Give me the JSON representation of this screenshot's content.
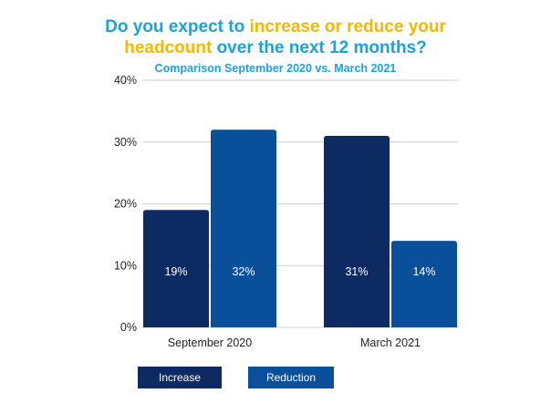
{
  "colors": {
    "title_blue": "#1aa3db",
    "title_yellow": "#f5b800",
    "increase": "#0e2a63",
    "reduction": "#0a4f9a",
    "grid": "#cfcfcf"
  },
  "title": {
    "p1": "Do you expect to ",
    "p2": "increase or reduce your",
    "p3": "headcount",
    "p4": " over the next 12 months?"
  },
  "subtitle": "Comparison September 2020 vs. March 2021",
  "chart_data": {
    "type": "bar",
    "title": "Do you expect to increase or reduce your headcount over the next 12 months?",
    "subtitle": "Comparison September 2020 vs. March 2021",
    "categories": [
      "September 2020",
      "March 2021"
    ],
    "series": [
      {
        "name": "Increase",
        "values": [
          19,
          31
        ],
        "labels": [
          "19%",
          "31%"
        ]
      },
      {
        "name": "Reduction",
        "values": [
          32,
          14
        ],
        "labels": [
          "32%",
          "14%"
        ]
      }
    ],
    "ylim": [
      0,
      40
    ],
    "yticks": [
      0,
      10,
      20,
      30,
      40
    ],
    "ytick_labels": [
      "0%",
      "10%",
      "20%",
      "30%",
      "40%"
    ],
    "grid": true,
    "legend_position": "bottom-left"
  },
  "legend": {
    "increase_label": "Increase",
    "reduction_label": "Reduction"
  }
}
